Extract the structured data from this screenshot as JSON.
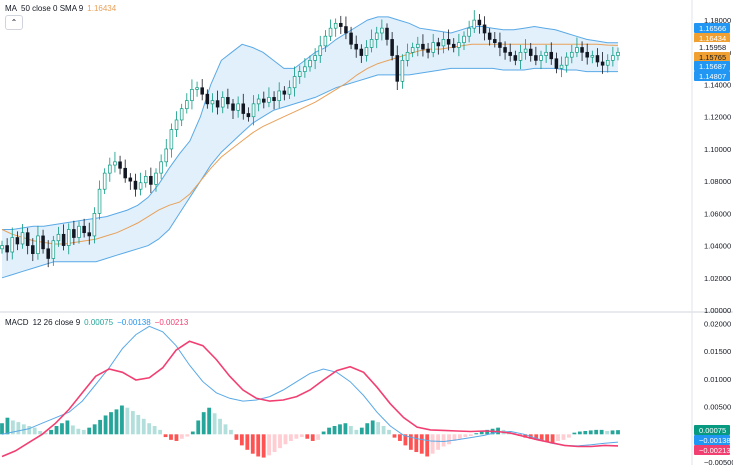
{
  "colors": {
    "up": "#089981",
    "down": "#131722",
    "ma": "#e8a15a",
    "bb_line": "#5aa9e6",
    "bb_fill": "#d9ecfa",
    "macd": "#5aa9e6",
    "signal": "#f23f72",
    "hist_pos_strong": "#26a69a",
    "hist_pos_weak": "#b2dfdb",
    "hist_neg_strong": "#ff5252",
    "hist_neg_weak": "#ffcdd2",
    "badge_blue": "#2196f3",
    "badge_orange": "#f0a030",
    "badge_red": "#f23f72",
    "badge_teal": "#089981"
  },
  "ma_legend": {
    "name": "MA",
    "params": "50 close 0 SMA 9",
    "value": "1.16434"
  },
  "macd_legend": {
    "name": "MACD",
    "params": "12 26 close 9",
    "v1": "0.00075",
    "v2": "−0.00138",
    "v3": "−0.00213"
  },
  "collapse_icon": "chevron-up-icon",
  "price_axis": {
    "ticks": [
      "1.18000",
      "1.16000",
      "1.14000",
      "1.12000",
      "1.10000",
      "1.08000",
      "1.06000",
      "1.04000",
      "1.02000",
      "1.00000"
    ],
    "badges": [
      {
        "label": "1.16566",
        "color": "#2196f3",
        "text_color": "#ffffff"
      },
      {
        "label": "1.16434",
        "color": "#f0a030",
        "text_color": "#ffffff"
      },
      {
        "label": "1.15958",
        "color": "#ffffff",
        "text_color": "#131722"
      },
      {
        "label": "1.15765",
        "color": "#f0a030",
        "text_color": "#131722"
      },
      {
        "label": "1.15687",
        "color": "#2196f3",
        "text_color": "#ffffff"
      },
      {
        "label": "1.14807",
        "color": "#2196f3",
        "text_color": "#ffffff"
      }
    ]
  },
  "macd_axis": {
    "ticks": [
      "0.02000",
      "0.01500",
      "0.01000",
      "0.00500",
      "−0.00500"
    ],
    "badges": [
      {
        "label": "0.00075",
        "color": "#089981",
        "text_color": "#ffffff"
      },
      {
        "label": "−0.00138",
        "color": "#2196f3",
        "text_color": "#ffffff"
      },
      {
        "label": "−0.00213",
        "color": "#f23f72",
        "text_color": "#ffffff"
      }
    ]
  },
  "chart_data": [
    {
      "type": "candlestick",
      "ylim": [
        1.0,
        1.19
      ],
      "ma_label": "MA 50 close 0 SMA 9",
      "price_path": [
        1.04,
        1.036,
        1.045,
        1.041,
        1.048,
        1.04,
        1.035,
        1.046,
        1.038,
        1.032,
        1.043,
        1.047,
        1.04,
        1.05,
        1.045,
        1.052,
        1.048,
        1.046,
        1.06,
        1.075,
        1.085,
        1.09,
        1.092,
        1.088,
        1.082,
        1.08,
        1.075,
        1.079,
        1.083,
        1.078,
        1.085,
        1.092,
        1.1,
        1.112,
        1.118,
        1.125,
        1.13,
        1.137,
        1.138,
        1.134,
        1.128,
        1.13,
        1.126,
        1.132,
        1.128,
        1.124,
        1.128,
        1.122,
        1.12,
        1.128,
        1.131,
        1.129,
        1.132,
        1.13,
        1.136,
        1.134,
        1.138,
        1.145,
        1.148,
        1.151,
        1.155,
        1.158,
        1.164,
        1.17,
        1.175,
        1.178,
        1.176,
        1.172,
        1.165,
        1.162,
        1.158,
        1.163,
        1.168,
        1.172,
        1.175,
        1.168,
        1.158,
        1.142,
        1.155,
        1.16,
        1.163,
        1.165,
        1.162,
        1.16,
        1.166,
        1.164,
        1.168,
        1.165,
        1.163,
        1.166,
        1.17,
        1.175,
        1.18,
        1.177,
        1.172,
        1.168,
        1.166,
        1.163,
        1.16,
        1.158,
        1.155,
        1.16,
        1.162,
        1.158,
        1.155,
        1.158,
        1.16,
        1.156,
        1.15,
        1.152,
        1.157,
        1.16,
        1.163,
        1.16,
        1.157,
        1.158,
        1.154,
        1.152,
        1.155,
        1.158,
        1.16
      ],
      "bb_upper": [
        1.05,
        1.05,
        1.051,
        1.052,
        1.052,
        1.053,
        1.054,
        1.055,
        1.056,
        1.057,
        1.058,
        1.06,
        1.062,
        1.065,
        1.07,
        1.078,
        1.088,
        1.097,
        1.105,
        1.12,
        1.14,
        1.155,
        1.16,
        1.165,
        1.163,
        1.16,
        1.155,
        1.15,
        1.15,
        1.155,
        1.16,
        1.163,
        1.168,
        1.172,
        1.176,
        1.18,
        1.182,
        1.182,
        1.18,
        1.178,
        1.175,
        1.174,
        1.173,
        1.172,
        1.174,
        1.176,
        1.176,
        1.175,
        1.174,
        1.174,
        1.175,
        1.176,
        1.175,
        1.174,
        1.172,
        1.17,
        1.168,
        1.167,
        1.166,
        1.166
      ],
      "bb_lower": [
        1.02,
        1.022,
        1.024,
        1.026,
        1.028,
        1.03,
        1.03,
        1.03,
        1.03,
        1.03,
        1.032,
        1.034,
        1.036,
        1.038,
        1.04,
        1.044,
        1.05,
        1.06,
        1.07,
        1.08,
        1.09,
        1.098,
        1.104,
        1.11,
        1.116,
        1.12,
        1.124,
        1.126,
        1.128,
        1.13,
        1.132,
        1.135,
        1.138,
        1.14,
        1.142,
        1.144,
        1.146,
        1.146,
        1.146,
        1.146,
        1.147,
        1.148,
        1.149,
        1.15,
        1.15,
        1.15,
        1.15,
        1.15,
        1.149,
        1.149,
        1.149,
        1.15,
        1.15,
        1.15,
        1.149,
        1.149,
        1.148,
        1.148,
        1.148,
        1.148
      ],
      "ma_line": [
        1.05,
        1.047,
        1.045,
        1.043,
        1.042,
        1.041,
        1.041,
        1.042,
        1.043,
        1.044,
        1.046,
        1.048,
        1.051,
        1.054,
        1.058,
        1.062,
        1.065,
        1.067,
        1.072,
        1.08,
        1.088,
        1.095,
        1.1,
        1.105,
        1.11,
        1.114,
        1.117,
        1.12,
        1.123,
        1.126,
        1.129,
        1.133,
        1.137,
        1.141,
        1.146,
        1.15,
        1.153,
        1.155,
        1.157,
        1.159,
        1.161,
        1.162,
        1.162,
        1.163,
        1.164,
        1.165,
        1.165,
        1.165,
        1.165,
        1.165,
        1.165,
        1.165,
        1.165,
        1.165,
        1.165,
        1.165,
        1.165,
        1.165,
        1.1645,
        1.1643
      ]
    },
    {
      "type": "line",
      "title": "MACD 12 26 close 9",
      "ylim": [
        -0.005,
        0.021
      ],
      "macd": [
        0.0,
        0.0005,
        0.001,
        0.002,
        0.003,
        0.004,
        0.006,
        0.009,
        0.012,
        0.0155,
        0.018,
        0.0195,
        0.0185,
        0.016,
        0.0125,
        0.0095,
        0.0075,
        0.0065,
        0.006,
        0.0062,
        0.0068,
        0.008,
        0.0095,
        0.011,
        0.0118,
        0.0112,
        0.0095,
        0.007,
        0.004,
        0.0015,
        -0.0002,
        -0.0008,
        -0.0012,
        -0.0013,
        -0.001,
        -0.0006,
        -0.0002,
        0.0004,
        0.0005,
        0.0,
        -0.0008,
        -0.0016,
        -0.002,
        -0.0021,
        -0.0019,
        -0.0016,
        -0.0014
      ],
      "signal": [
        -0.004,
        -0.003,
        -0.0015,
        0.0,
        0.002,
        0.0045,
        0.0075,
        0.0105,
        0.0118,
        0.0112,
        0.0098,
        0.0102,
        0.012,
        0.0152,
        0.0168,
        0.016,
        0.0135,
        0.0105,
        0.008,
        0.0065,
        0.006,
        0.0062,
        0.0068,
        0.008,
        0.0098,
        0.0115,
        0.0122,
        0.0112,
        0.0085,
        0.0055,
        0.003,
        0.0013,
        0.0008,
        0.0007,
        0.0006,
        0.0005,
        0.0006,
        0.0005,
        0.0002,
        -0.0004,
        -0.001,
        -0.0015,
        -0.002,
        -0.0022,
        -0.0022,
        -0.002,
        -0.0021
      ],
      "histogram": [
        0.002,
        0.003,
        0.0025,
        0.0022,
        0.0018,
        0.0015,
        0.0012,
        0.0006,
        0.0003,
        0.0008,
        0.0015,
        0.002,
        0.0025,
        0.0016,
        0.001,
        0.0008,
        0.0012,
        0.0018,
        0.0026,
        0.0034,
        0.004,
        0.0045,
        0.0052,
        0.0048,
        0.0042,
        0.0035,
        0.0028,
        0.002,
        0.0015,
        0.0008,
        -0.0005,
        -0.001,
        -0.0012,
        -0.0008,
        -0.0004,
        0.0005,
        0.0025,
        0.004,
        0.0048,
        0.0038,
        0.0028,
        0.0018,
        0.0008,
        -0.001,
        -0.002,
        -0.0028,
        -0.0035,
        -0.004,
        -0.0042,
        -0.0038,
        -0.0032,
        -0.0025,
        -0.0018,
        -0.0012,
        -0.0008,
        -0.0005,
        -0.0008,
        -0.0012,
        -0.001,
        0.0005,
        0.0012,
        0.0015,
        0.0018,
        0.002,
        0.0015,
        0.0008,
        0.0012,
        0.002,
        0.0025,
        0.0022,
        0.0015,
        0.0008,
        -0.0006,
        -0.0012,
        -0.002,
        -0.0028,
        -0.0032,
        -0.0035,
        -0.004,
        -0.0035,
        -0.0028,
        -0.0022,
        -0.0018,
        -0.0012,
        -0.0008,
        -0.0005,
        -0.0003,
        0.0002,
        0.0005,
        0.0008,
        0.001,
        0.0012,
        0.0008,
        0.0005,
        0.0003,
        -0.0003,
        -0.0006,
        -0.0008,
        -0.001,
        -0.0012,
        -0.0014,
        -0.0015,
        -0.0012,
        -0.001,
        -0.0006,
        0.0003,
        0.0005,
        0.0006,
        0.0007,
        0.0008,
        0.0008,
        0.0006,
        0.0007,
        0.00075
      ]
    }
  ]
}
